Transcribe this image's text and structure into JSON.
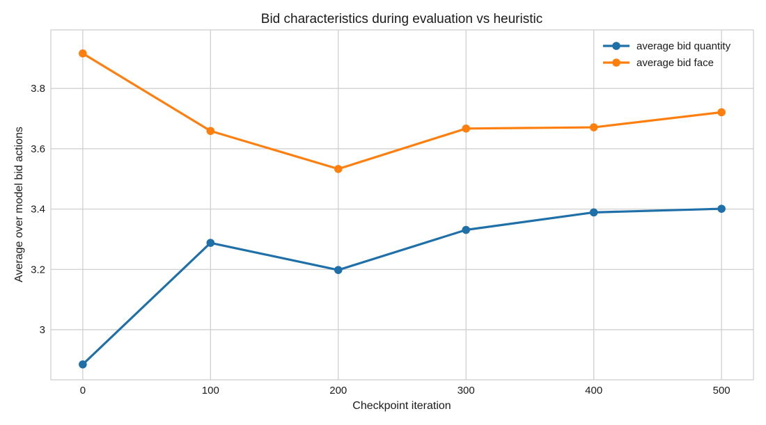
{
  "chart_data": {
    "type": "line",
    "title": "Bid characteristics during evaluation vs heuristic",
    "xlabel": "Checkpoint iteration",
    "ylabel": "Average over model bid actions",
    "x": [
      0,
      100,
      200,
      300,
      400,
      500
    ],
    "xticks": [
      0,
      100,
      200,
      300,
      400,
      500
    ],
    "yticks": [
      3.0,
      3.2,
      3.4,
      3.6,
      3.8
    ],
    "xlim": [
      -25,
      525
    ],
    "ylim": [
      2.834,
      3.994
    ],
    "grid": true,
    "legend_position": "top-right",
    "series": [
      {
        "name": "average bid quantity",
        "color": "#1f6fa8",
        "values": [
          2.885,
          3.288,
          3.198,
          3.331,
          3.389,
          3.401
        ]
      },
      {
        "name": "average bid face",
        "color": "#ff7f0e",
        "values": [
          3.916,
          3.659,
          3.533,
          3.667,
          3.671,
          3.721
        ]
      }
    ]
  }
}
